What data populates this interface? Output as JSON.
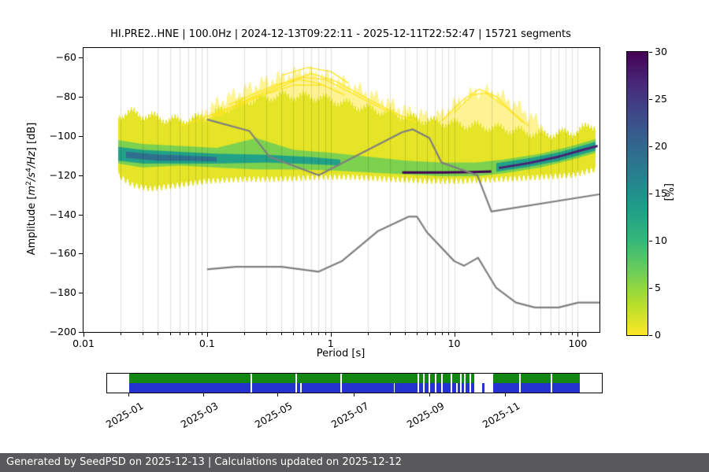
{
  "title": "HI.PRE2..HNE | 100.0Hz | 2024-12-13T09:22:11 - 2025-12-11T22:52:47 | 15721 segments",
  "axes": {
    "xlabel": "Period [s]",
    "ylabel_parts": {
      "pre": "Amplitude [",
      "v1": "m",
      "s1": "2",
      "v2": "/s",
      "s2": "4",
      "v3": "/Hz",
      "post": "] [dB]"
    },
    "x_ticks": [
      {
        "v": 0.01,
        "label": "0.01"
      },
      {
        "v": 0.1,
        "label": "0.1"
      },
      {
        "v": 1,
        "label": "1"
      },
      {
        "v": 10,
        "label": "10"
      },
      {
        "v": 100,
        "label": "100"
      }
    ],
    "y_ticks": [
      {
        "v": -60,
        "label": "−60"
      },
      {
        "v": -80,
        "label": "−80"
      },
      {
        "v": -100,
        "label": "−100"
      },
      {
        "v": -120,
        "label": "−120"
      },
      {
        "v": -140,
        "label": "−140"
      },
      {
        "v": -160,
        "label": "−160"
      },
      {
        "v": -180,
        "label": "−180"
      },
      {
        "v": -200,
        "label": "−200"
      }
    ]
  },
  "colorbar": {
    "label": "[%]",
    "min": 0,
    "max": 30,
    "ticks": [
      0,
      5,
      10,
      15,
      20,
      25,
      30
    ],
    "colors": [
      "#fde725",
      "#b5de2b",
      "#6ece58",
      "#35b779",
      "#1f9e89",
      "#26828e",
      "#31688e",
      "#3e4989",
      "#482878",
      "#440154"
    ]
  },
  "chart_data": {
    "type": "heatmap",
    "description": "Probabilistic power spectral density (PPSD): probability [%] as color vs period [s] (log x) and amplitude [dB]; gray curves are high/low noise model reference lines",
    "x_range": [
      0.01,
      150
    ],
    "y_range": [
      -200,
      -55
    ],
    "grid": "vertical log minor+major gridlines",
    "heatmap": {
      "envelope_pct": 1.1,
      "envelope": [
        {
          "p": 0.019,
          "top": -89,
          "bot": -120
        },
        {
          "p": 0.025,
          "top": -88,
          "bot": -125
        },
        {
          "p": 0.035,
          "top": -90,
          "bot": -127
        },
        {
          "p": 0.06,
          "top": -92,
          "bot": -125
        },
        {
          "p": 0.1,
          "top": -90,
          "bot": -123
        },
        {
          "p": 0.2,
          "top": -82,
          "bot": -122
        },
        {
          "p": 0.4,
          "top": -79,
          "bot": -122
        },
        {
          "p": 0.8,
          "top": -80,
          "bot": -121
        },
        {
          "p": 1.5,
          "top": -84,
          "bot": -121
        },
        {
          "p": 3,
          "top": -88,
          "bot": -122
        },
        {
          "p": 6,
          "top": -92,
          "bot": -123
        },
        {
          "p": 12,
          "top": -94,
          "bot": -123
        },
        {
          "p": 25,
          "top": -96,
          "bot": -122
        },
        {
          "p": 50,
          "top": -99,
          "bot": -121
        },
        {
          "p": 90,
          "top": -98,
          "bot": -120
        },
        {
          "p": 140,
          "top": -94,
          "bot": -117
        }
      ],
      "halo": [
        {
          "p": 0.09,
          "top": -88
        },
        {
          "p": 0.15,
          "top": -80
        },
        {
          "p": 0.3,
          "top": -72
        },
        {
          "p": 0.6,
          "top": -67
        },
        {
          "p": 1,
          "top": -70
        },
        {
          "p": 2,
          "top": -78
        },
        {
          "p": 4,
          "top": -87
        },
        {
          "p": 7,
          "top": -91
        },
        {
          "p": 10,
          "top": -84
        },
        {
          "p": 15,
          "top": -77
        },
        {
          "p": 22,
          "top": -78
        },
        {
          "p": 35,
          "top": -86
        },
        {
          "p": 55,
          "top": -96
        }
      ],
      "bands": [
        {
          "name": "green",
          "pct": 6,
          "points": [
            {
              "p": 0.019,
              "c": -108,
              "w": 6
            },
            {
              "p": 0.03,
              "c": -110,
              "w": 6
            },
            {
              "p": 0.06,
              "c": -110,
              "w": 5
            },
            {
              "p": 0.12,
              "c": -111,
              "w": 5
            },
            {
              "p": 0.25,
              "c": -109,
              "w": 8
            },
            {
              "p": 0.5,
              "c": -112,
              "w": 5
            },
            {
              "p": 1,
              "c": -113,
              "w": 4.5
            },
            {
              "p": 2,
              "c": -114.5,
              "w": 4
            },
            {
              "p": 4,
              "c": -116,
              "w": 3.5
            },
            {
              "p": 8,
              "c": -117,
              "w": 3.5
            },
            {
              "p": 15,
              "c": -117,
              "w": 3.5
            },
            {
              "p": 25,
              "c": -115.5,
              "w": 3.5
            },
            {
              "p": 50,
              "c": -112.5,
              "w": 3.5
            },
            {
              "p": 90,
              "c": -108.5,
              "w": 3.5
            },
            {
              "p": 140,
              "c": -105,
              "w": 3.5
            }
          ]
        },
        {
          "name": "teal-left",
          "pct": 13,
          "points": [
            {
              "p": 0.019,
              "c": -109,
              "w": 3.5
            },
            {
              "p": 0.03,
              "c": -110.5,
              "w": 3.5
            },
            {
              "p": 0.06,
              "c": -111,
              "w": 3
            },
            {
              "p": 0.12,
              "c": -111.5,
              "w": 2.5
            },
            {
              "p": 0.3,
              "c": -111.5,
              "w": 2
            },
            {
              "p": 0.7,
              "c": -112.5,
              "w": 1.8
            },
            {
              "p": 1.2,
              "c": -113.5,
              "w": 1.5
            }
          ]
        },
        {
          "name": "teal-right",
          "pct": 13,
          "points": [
            {
              "p": 22,
              "c": -116,
              "w": 2.2
            },
            {
              "p": 40,
              "c": -113.5,
              "w": 2.2
            },
            {
              "p": 70,
              "c": -110.5,
              "w": 2.2
            },
            {
              "p": 110,
              "c": -107,
              "w": 2.2
            },
            {
              "p": 145,
              "c": -104.8,
              "w": 2.2
            }
          ]
        },
        {
          "name": "core-left",
          "pct": 19,
          "points": [
            {
              "p": 0.022,
              "c": -109.5,
              "w": 1.6
            },
            {
              "p": 0.04,
              "c": -111,
              "w": 1.6
            },
            {
              "p": 0.07,
              "c": -111.3,
              "w": 1.3
            },
            {
              "p": 0.12,
              "c": -111.8,
              "w": 1.1
            }
          ]
        }
      ],
      "streaks": [
        {
          "name": "microseism-dark-line",
          "pct": 30,
          "width": 3,
          "points": [
            [
              3.8,
              -118.6
            ],
            [
              8,
              -118.6
            ],
            [
              14,
              -118.4
            ],
            [
              20,
              -118.1
            ]
          ]
        },
        {
          "name": "long-period-dark-band",
          "pct": 27,
          "width": 3,
          "points": [
            [
              23,
              -116.3
            ],
            [
              40,
              -113.8
            ],
            [
              70,
              -110.5
            ],
            [
              110,
              -107
            ],
            [
              145,
              -105
            ]
          ]
        }
      ],
      "arcs": [
        [
          [
            0.09,
            -93
          ],
          [
            0.2,
            -82
          ],
          [
            0.45,
            -72
          ],
          [
            0.7,
            -68
          ],
          [
            1.1,
            -72
          ],
          [
            2,
            -81
          ],
          [
            3.5,
            -89
          ],
          [
            5,
            -93
          ]
        ],
        [
          [
            0.12,
            -90
          ],
          [
            0.3,
            -78
          ],
          [
            0.6,
            -70
          ],
          [
            0.9,
            -71
          ],
          [
            1.6,
            -79
          ],
          [
            3,
            -88
          ]
        ],
        [
          [
            0.4,
            -69
          ],
          [
            0.65,
            -65
          ],
          [
            1,
            -67
          ],
          [
            1.4,
            -73
          ]
        ],
        [
          [
            0.15,
            -84
          ],
          [
            0.35,
            -74
          ],
          [
            0.55,
            -71
          ],
          [
            0.8,
            -73
          ],
          [
            1.3,
            -79
          ]
        ],
        [
          [
            8,
            -92
          ],
          [
            12,
            -81
          ],
          [
            16,
            -76
          ],
          [
            22,
            -80
          ],
          [
            30,
            -88
          ],
          [
            40,
            -95
          ]
        ],
        [
          [
            10,
            -88
          ],
          [
            14,
            -79
          ],
          [
            18,
            -78
          ],
          [
            26,
            -85
          ],
          [
            36,
            -93
          ]
        ],
        [
          [
            0.06,
            -95
          ],
          [
            0.12,
            -88
          ],
          [
            0.25,
            -80
          ],
          [
            0.5,
            -74
          ],
          [
            0.9,
            -74
          ]
        ]
      ]
    },
    "noise_models": {
      "color": "#7f7f7f",
      "high": [
        [
          0.1,
          -91.5
        ],
        [
          0.22,
          -97.4
        ],
        [
          0.32,
          -110.5
        ],
        [
          0.8,
          -120
        ],
        [
          3.8,
          -98
        ],
        [
          4.6,
          -96.5
        ],
        [
          6.3,
          -101
        ],
        [
          7.9,
          -113.5
        ],
        [
          15.4,
          -120
        ],
        [
          20,
          -138.5
        ],
        [
          150,
          -129.7
        ]
      ],
      "low": [
        [
          0.1,
          -168
        ],
        [
          0.17,
          -166.7
        ],
        [
          0.4,
          -166.7
        ],
        [
          0.8,
          -169.2
        ],
        [
          1.24,
          -163.7
        ],
        [
          2.4,
          -148.6
        ],
        [
          4.3,
          -141.1
        ],
        [
          5,
          -141.1
        ],
        [
          6,
          -149
        ],
        [
          10,
          -163.8
        ],
        [
          12,
          -166.2
        ],
        [
          15.6,
          -162.1
        ],
        [
          21.9,
          -177.5
        ],
        [
          31.6,
          -185
        ],
        [
          45,
          -187.5
        ],
        [
          70,
          -187.5
        ],
        [
          101,
          -185
        ],
        [
          150,
          -185
        ]
      ]
    }
  },
  "timeline": {
    "start_frac": 0.044,
    "end_frac": 0.956,
    "rows": [
      {
        "name": "green",
        "color": "#128712",
        "gaps": [
          {
            "f": 0.29
          },
          {
            "f": 0.381
          },
          {
            "f": 0.471
          },
          {
            "f": 0.627
          },
          {
            "f": 0.638
          },
          {
            "f": 0.65
          },
          {
            "f": 0.662
          },
          {
            "f": 0.675
          },
          {
            "f": 0.694
          },
          {
            "f": 0.713
          },
          {
            "f": 0.722
          },
          {
            "f": 0.732
          },
          {
            "f": 0.742,
            "w": 0.038
          },
          {
            "f": 0.833
          },
          {
            "f": 0.897
          }
        ]
      },
      {
        "name": "blue",
        "color": "#2433d0",
        "gaps": [
          {
            "f": 0.29
          },
          {
            "f": 0.381
          },
          {
            "f": 0.39
          },
          {
            "f": 0.471
          },
          {
            "f": 0.579
          },
          {
            "f": 0.627
          },
          {
            "f": 0.638
          },
          {
            "f": 0.65
          },
          {
            "f": 0.662
          },
          {
            "f": 0.675
          },
          {
            "f": 0.694
          },
          {
            "f": 0.706
          },
          {
            "f": 0.713
          },
          {
            "f": 0.722
          },
          {
            "f": 0.732
          },
          {
            "f": 0.742,
            "w": 0.016
          },
          {
            "f": 0.762,
            "w": 0.018
          },
          {
            "f": 0.833
          },
          {
            "f": 0.897
          }
        ]
      }
    ],
    "ticks": [
      {
        "f": 0.044,
        "label": "2025-01"
      },
      {
        "f": 0.195,
        "label": "2025-03"
      },
      {
        "f": 0.344,
        "label": "2025-05"
      },
      {
        "f": 0.498,
        "label": "2025-07"
      },
      {
        "f": 0.651,
        "label": "2025-09"
      },
      {
        "f": 0.803,
        "label": "2025-11"
      }
    ]
  },
  "footer": {
    "text": "Generated by SeedPSD on 2025-12-13 | Calculations updated on 2025-12-12"
  }
}
